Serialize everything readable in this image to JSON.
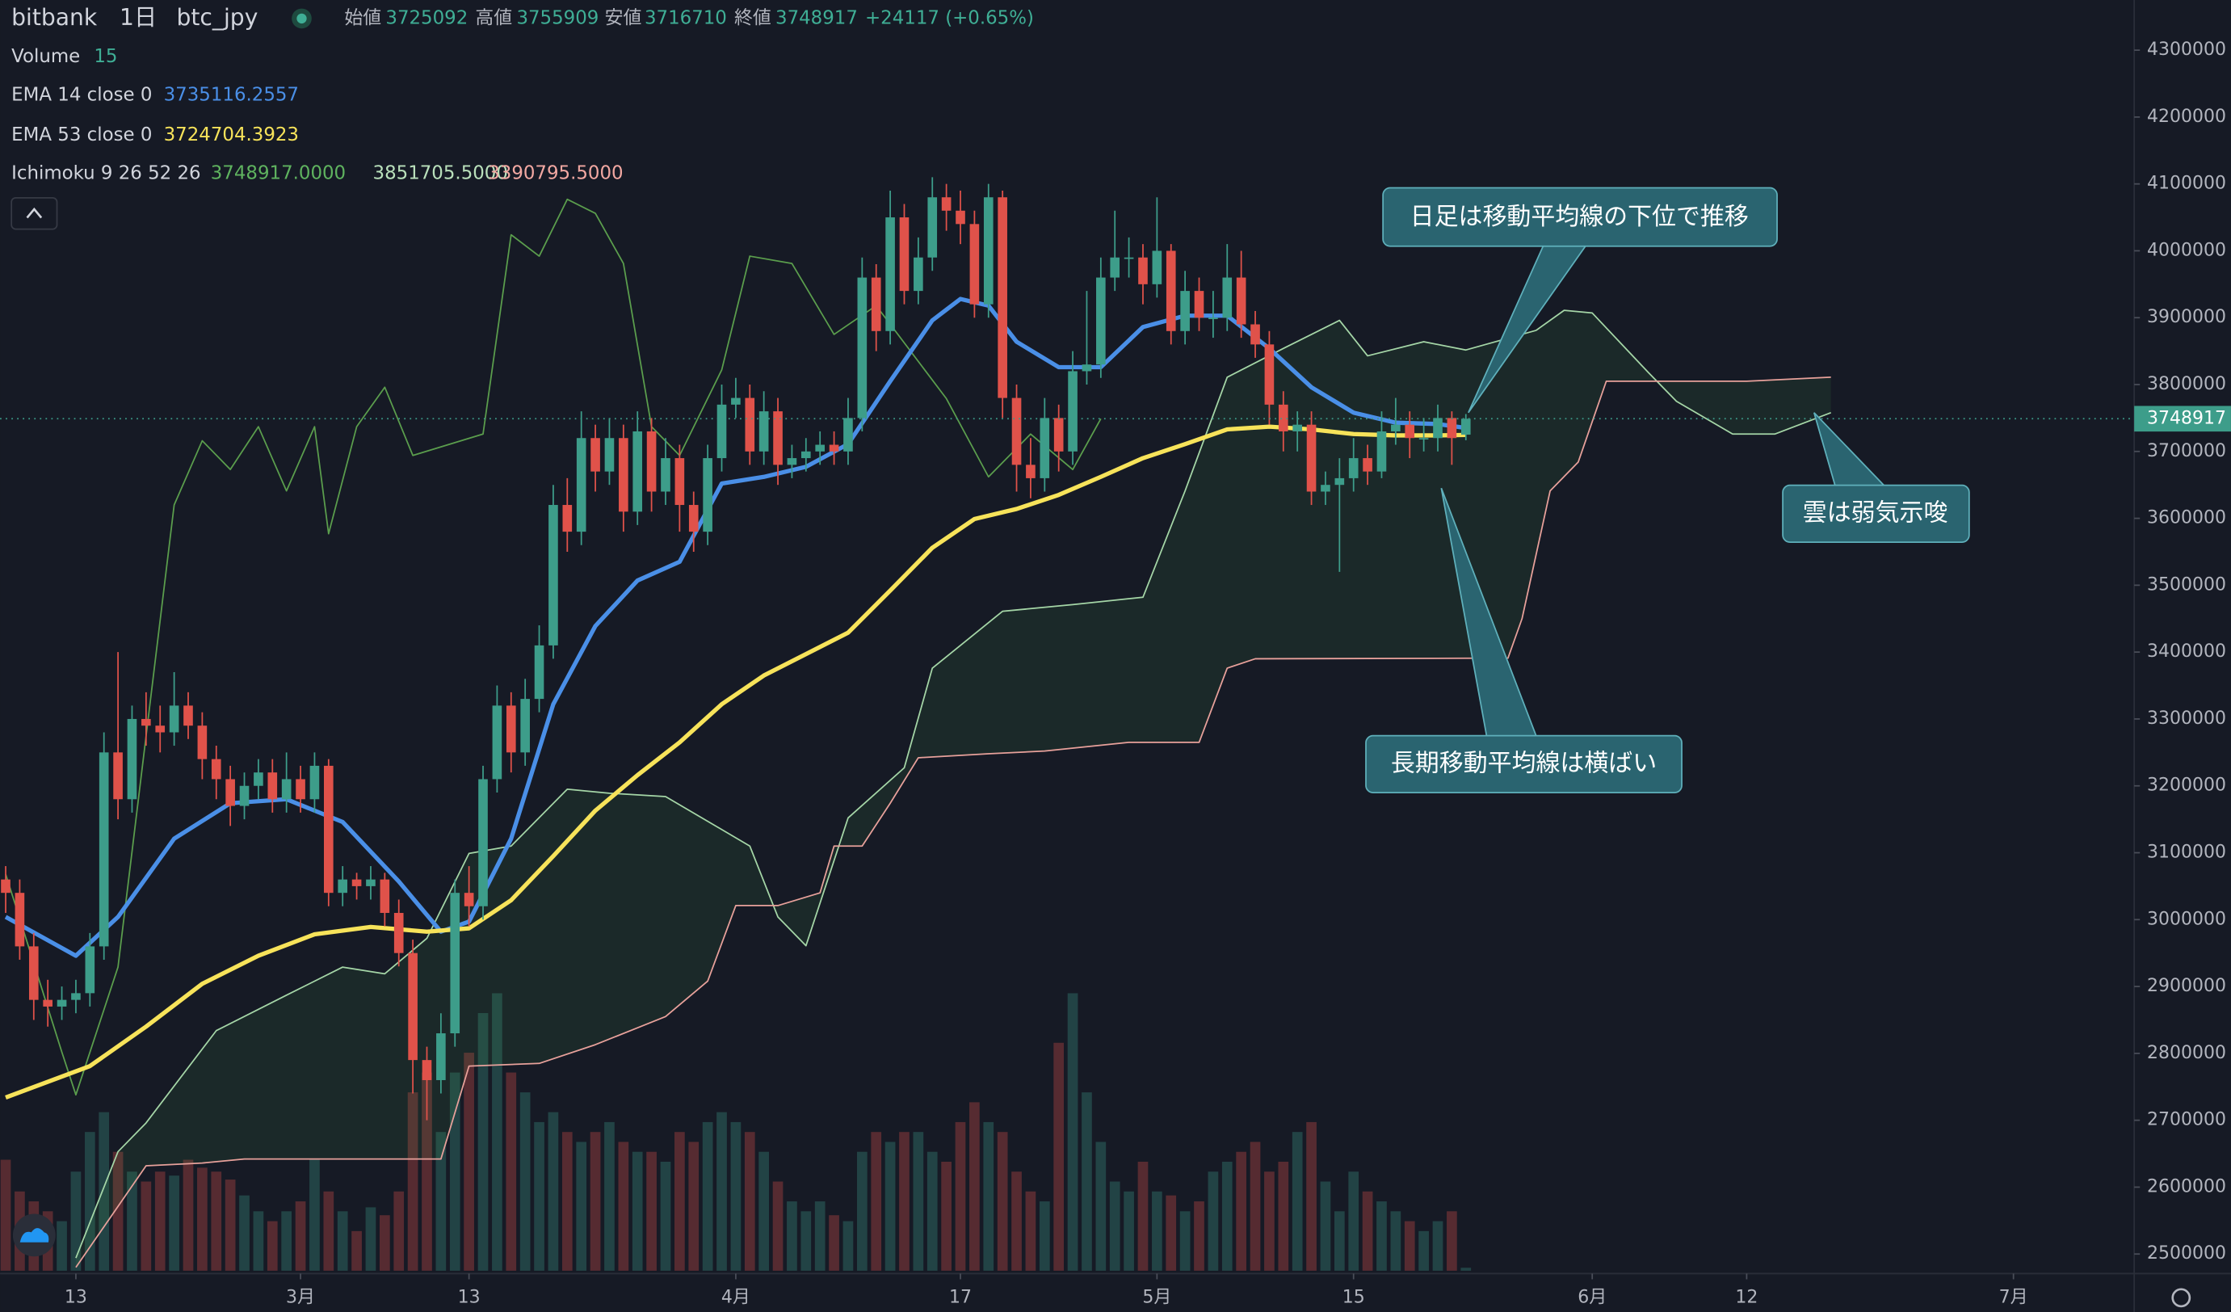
{
  "chart_data": {
    "type": "candlestick",
    "exchange": "bitbank",
    "interval": "1日",
    "symbol": "btc_jpy",
    "ohlc_labels": [
      "始値",
      "高値",
      "安値",
      "終値"
    ],
    "change": "+24117 (+0.65%)",
    "up_color": "#3d9d8a",
    "down_color": "#e0524a",
    "x": [
      39,
      40,
      41,
      42,
      43,
      44,
      45,
      46,
      47,
      48,
      49,
      50,
      51,
      52,
      53,
      54,
      55,
      56,
      57,
      58,
      59,
      60,
      61,
      62,
      63,
      64,
      65,
      66,
      67,
      68,
      69,
      70,
      71,
      72,
      73,
      74,
      75,
      76,
      77,
      78,
      79,
      80,
      81,
      82,
      83,
      84,
      85,
      86,
      87,
      88,
      89,
      90,
      91,
      92,
      93,
      94,
      95,
      96,
      97,
      98,
      99,
      100,
      101,
      102,
      103,
      104,
      105,
      106,
      107,
      108,
      109,
      110,
      111,
      112,
      113,
      114,
      115,
      116,
      117,
      118,
      119,
      120,
      121,
      122,
      123,
      124,
      125,
      126,
      127,
      128,
      129,
      130,
      131,
      132,
      133,
      134,
      135,
      136,
      137,
      138,
      139,
      140,
      141,
      142,
      143
    ],
    "open": [
      3060000,
      3040000,
      2960000,
      2880000,
      2870000,
      2880000,
      2890000,
      2960000,
      3250000,
      3180000,
      3300000,
      3290000,
      3280000,
      3320000,
      3290000,
      3240000,
      3210000,
      3170000,
      3200000,
      3220000,
      3180000,
      3210000,
      3180000,
      3230000,
      3040000,
      3060000,
      3050000,
      3060000,
      3010000,
      2950000,
      2790000,
      2760000,
      2830000,
      3040000,
      3020000,
      3210000,
      3320000,
      3250000,
      3330000,
      3410000,
      3620000,
      3580000,
      3720000,
      3670000,
      3720000,
      3610000,
      3730000,
      3640000,
      3690000,
      3620000,
      3580000,
      3690000,
      3770000,
      3780000,
      3700000,
      3760000,
      3680000,
      3690000,
      3700000,
      3710000,
      3700000,
      3750000,
      3960000,
      3880000,
      4050000,
      3940000,
      3990000,
      4080000,
      4060000,
      4040000,
      3920000,
      4080000,
      3780000,
      3680000,
      3660000,
      3750000,
      3700000,
      3820000,
      3830000,
      3960000,
      3990000,
      3990000,
      3950000,
      4000000,
      3880000,
      3940000,
      3900000,
      3900000,
      3960000,
      3890000,
      3860000,
      3770000,
      3730000,
      3740000,
      3640000,
      3650000,
      3660000,
      3690000,
      3670000,
      3730000,
      3740000,
      3720000,
      3720000,
      3750000,
      3725092
    ],
    "high": [
      3080000,
      3060000,
      2980000,
      2910000,
      2900000,
      2910000,
      2980000,
      3280000,
      3400000,
      3320000,
      3340000,
      3320000,
      3370000,
      3340000,
      3310000,
      3260000,
      3230000,
      3220000,
      3240000,
      3240000,
      3250000,
      3230000,
      3250000,
      3240000,
      3080000,
      3070000,
      3080000,
      3070000,
      3030000,
      2970000,
      2810000,
      2860000,
      3060000,
      3080000,
      3230000,
      3350000,
      3340000,
      3360000,
      3440000,
      3650000,
      3660000,
      3760000,
      3740000,
      3750000,
      3740000,
      3760000,
      3750000,
      3720000,
      3710000,
      3640000,
      3710000,
      3800000,
      3810000,
      3800000,
      3790000,
      3780000,
      3710000,
      3720000,
      3730000,
      3730000,
      3780000,
      3990000,
      3980000,
      4090000,
      4070000,
      4020000,
      4110000,
      4100000,
      4090000,
      4060000,
      4100000,
      4090000,
      3800000,
      3720000,
      3780000,
      3770000,
      3850000,
      3940000,
      3990000,
      4060000,
      4020000,
      4010000,
      4080000,
      4010000,
      3970000,
      3960000,
      3940000,
      4010000,
      4000000,
      3910000,
      3880000,
      3790000,
      3760000,
      3760000,
      3670000,
      3690000,
      3720000,
      3710000,
      3760000,
      3780000,
      3760000,
      3750000,
      3770000,
      3760000,
      3755909
    ],
    "low": [
      3010000,
      2940000,
      2850000,
      2840000,
      2850000,
      2860000,
      2870000,
      2940000,
      3150000,
      3160000,
      3260000,
      3250000,
      3260000,
      3270000,
      3210000,
      3180000,
      3140000,
      3150000,
      3180000,
      3160000,
      3160000,
      3160000,
      3160000,
      3020000,
      3020000,
      3030000,
      3030000,
      2990000,
      2930000,
      2740000,
      2700000,
      2740000,
      2810000,
      2990000,
      3000000,
      3190000,
      3220000,
      3230000,
      3310000,
      3390000,
      3550000,
      3560000,
      3640000,
      3650000,
      3580000,
      3590000,
      3610000,
      3620000,
      3580000,
      3550000,
      3560000,
      3670000,
      3750000,
      3680000,
      3680000,
      3650000,
      3660000,
      3670000,
      3680000,
      3680000,
      3680000,
      3730000,
      3850000,
      3860000,
      3920000,
      3920000,
      3970000,
      4030000,
      4010000,
      3900000,
      3900000,
      3750000,
      3640000,
      3630000,
      3640000,
      3670000,
      3680000,
      3800000,
      3810000,
      3940000,
      3960000,
      3920000,
      3930000,
      3860000,
      3860000,
      3880000,
      3870000,
      3880000,
      3870000,
      3840000,
      3740000,
      3700000,
      3700000,
      3620000,
      3620000,
      3520000,
      3640000,
      3650000,
      3660000,
      3710000,
      3690000,
      3700000,
      3700000,
      3680000,
      3716710
    ],
    "close": [
      3040000,
      2960000,
      2880000,
      2870000,
      2880000,
      2890000,
      2960000,
      3250000,
      3180000,
      3300000,
      3290000,
      3280000,
      3320000,
      3290000,
      3240000,
      3210000,
      3170000,
      3200000,
      3220000,
      3180000,
      3210000,
      3180000,
      3230000,
      3040000,
      3060000,
      3050000,
      3060000,
      3010000,
      2950000,
      2790000,
      2760000,
      2830000,
      3040000,
      3020000,
      3210000,
      3320000,
      3250000,
      3330000,
      3410000,
      3620000,
      3580000,
      3720000,
      3670000,
      3720000,
      3610000,
      3730000,
      3640000,
      3690000,
      3620000,
      3580000,
      3690000,
      3770000,
      3780000,
      3700000,
      3760000,
      3680000,
      3690000,
      3700000,
      3710000,
      3700000,
      3750000,
      3960000,
      3880000,
      4050000,
      3940000,
      3990000,
      4080000,
      4060000,
      4040000,
      3920000,
      4080000,
      3780000,
      3680000,
      3660000,
      3750000,
      3700000,
      3820000,
      3830000,
      3960000,
      3990000,
      3990000,
      3950000,
      4000000,
      3880000,
      3940000,
      3900000,
      3900000,
      3960000,
      3890000,
      3860000,
      3770000,
      3730000,
      3740000,
      3640000,
      3650000,
      3660000,
      3690000,
      3670000,
      3730000,
      3740000,
      3720000,
      3720000,
      3750000,
      3720000,
      3748917
    ],
    "volume": {
      "name": "Volume",
      "values": [
        560,
        400,
        350,
        300,
        250,
        500,
        700,
        800,
        600,
        500,
        450,
        500,
        480,
        560,
        520,
        500,
        460,
        380,
        300,
        250,
        300,
        350,
        560,
        400,
        300,
        200,
        320,
        280,
        400,
        900,
        1000,
        700,
        1000,
        1100,
        1300,
        1400,
        1000,
        900,
        750,
        800,
        700,
        650,
        700,
        750,
        650,
        600,
        600,
        550,
        700,
        650,
        750,
        800,
        750,
        700,
        600,
        450,
        350,
        300,
        350,
        280,
        250,
        600,
        700,
        650,
        700,
        700,
        600,
        550,
        750,
        850,
        750,
        700,
        500,
        400,
        350,
        1150,
        1400,
        900,
        650,
        450,
        400,
        550,
        400,
        380,
        300,
        350,
        500,
        550,
        600,
        650,
        500,
        550,
        700,
        750,
        450,
        300,
        500,
        400,
        350,
        300,
        250,
        200,
        250,
        300,
        15
      ]
    },
    "series": [
      {
        "name": "EMA 14 close 0",
        "color": "#4a8fe7",
        "x": [
          39,
          44,
          47,
          51,
          55,
          59,
          63,
          67,
          70,
          72,
          75,
          78,
          81,
          84,
          87,
          90,
          93,
          96,
          99,
          102,
          105,
          107,
          109,
          111,
          114,
          117,
          120,
          123,
          126,
          129,
          132,
          135,
          138,
          141,
          143
        ],
        "values": [
          3004000,
          2946000,
          3004000,
          3121000,
          3174000,
          3180000,
          3146000,
          3057000,
          2982000,
          2997000,
          3121000,
          3322000,
          3439000,
          3507000,
          3535000,
          3652000,
          3662000,
          3677000,
          3711000,
          3805000,
          3896000,
          3928000,
          3918000,
          3864000,
          3826000,
          3826000,
          3886000,
          3903000,
          3903000,
          3854000,
          3796000,
          3758000,
          3743000,
          3741000,
          3735116.2557
        ]
      },
      {
        "name": "EMA 53 close 0",
        "color": "#f7e35a",
        "x": [
          39,
          45,
          49,
          53,
          57,
          61,
          65,
          69,
          72,
          75,
          78,
          81,
          84,
          87,
          90,
          93,
          96,
          99,
          102,
          105,
          108,
          111,
          114,
          117,
          120,
          123,
          126,
          129,
          132,
          135,
          138,
          141,
          143
        ],
        "values": [
          2734000,
          2781000,
          2840000,
          2904000,
          2946000,
          2978000,
          2989000,
          2982000,
          2987000,
          3029000,
          3095000,
          3163000,
          3216000,
          3265000,
          3322000,
          3365000,
          3397000,
          3429000,
          3492000,
          3556000,
          3599000,
          3614000,
          3635000,
          3662000,
          3690000,
          3711000,
          3733000,
          3737000,
          3733000,
          3726000,
          3724000,
          3724000,
          3724704.3923
        ]
      }
    ],
    "ichimoku": {
      "name": "Ichimoku 9 26 52 26",
      "cloud_color": "#4caf50",
      "value_labels": [
        "3748917.0000",
        "3851705.5000",
        "3390795.5000"
      ],
      "lines": [
        {
          "color": "#5b9e4d",
          "x": [
            39,
            43,
            44,
            47,
            51,
            53,
            55,
            57,
            59,
            61,
            62,
            64,
            66,
            68,
            73,
            75,
            77,
            79,
            81,
            83,
            85,
            87,
            90,
            92,
            95,
            98,
            101,
            106,
            109,
            112,
            115,
            117
          ],
          "values": [
            3068000,
            2802000,
            2738000,
            2929000,
            3620000,
            3716000,
            3673000,
            3737000,
            3641000,
            3737000,
            3577000,
            3737000,
            3796000,
            3694000,
            3726000,
            4024000,
            3992000,
            4077000,
            4056000,
            3981000,
            3737000,
            3694000,
            3822000,
            3992000,
            3981000,
            3875000,
            3918000,
            3779000,
            3662000,
            3726000,
            3673000,
            3748917
          ]
        },
        {
          "color": "#a5d6a7",
          "x": [
            44,
            47,
            49,
            54,
            59,
            63,
            66,
            69,
            72,
            75,
            79,
            82,
            86,
            92,
            94,
            96,
            99,
            103,
            105,
            110,
            115,
            120,
            123,
            126,
            130,
            134,
            136,
            140,
            143,
            148,
            150,
            152,
            156,
            158,
            162,
            165,
            169
          ],
          "values": [
            2494000,
            2653000,
            2696000,
            2834000,
            2887000,
            2929000,
            2919000,
            2972000,
            3099000,
            3110000,
            3195000,
            3189000,
            3184000,
            3110000,
            3004000,
            2961000,
            3152000,
            3227000,
            3376000,
            3461000,
            3471000,
            3482000,
            3641000,
            3811000,
            3854000,
            3896000,
            3843000,
            3864000,
            3851705.5,
            3881000,
            3911000,
            3907000,
            3818000,
            3775000,
            3726000,
            3726000,
            3758000
          ]
        },
        {
          "color": "#e8a19b",
          "x": [
            44,
            49,
            53,
            56,
            70,
            72,
            77,
            81,
            86,
            89,
            91,
            94,
            97,
            98,
            100,
            102,
            104,
            109,
            113,
            119,
            124,
            126,
            128,
            143,
            146,
            147,
            149,
            151,
            153,
            163,
            169
          ],
          "values": [
            2480000,
            2632000,
            2636000,
            2642000,
            2642000,
            2781000,
            2785000,
            2813000,
            2855000,
            2908000,
            3021000,
            3021000,
            3040000,
            3110000,
            3110000,
            3174000,
            3242000,
            3248000,
            3252000,
            3265000,
            3265000,
            3376000,
            3390000,
            3390795.5,
            3391000,
            3450000,
            3641000,
            3684000,
            3805000,
            3805000,
            3811000
          ]
        }
      ]
    },
    "xlim": [
      38.6,
      190.6
    ],
    "xticks": [
      {
        "value": 44,
        "label": "13"
      },
      {
        "value": 60,
        "label": "3月"
      },
      {
        "value": 72,
        "label": "13"
      },
      {
        "value": 91,
        "label": "4月"
      },
      {
        "value": 107,
        "label": "17"
      },
      {
        "value": 121,
        "label": "5月"
      },
      {
        "value": 135,
        "label": "15"
      },
      {
        "value": 152,
        "label": "6月"
      },
      {
        "value": 163,
        "label": "12"
      },
      {
        "value": 182,
        "label": "7月"
      }
    ],
    "ylim": [
      2475000,
      4375000
    ],
    "yticks": [
      2500000,
      2600000,
      2700000,
      2800000,
      2900000,
      3000000,
      3100000,
      3200000,
      3300000,
      3400000,
      3500000,
      3600000,
      3700000,
      3800000,
      3900000,
      4000000,
      4100000,
      4200000,
      4300000
    ],
    "annotations": [
      "日足は移動平均線の下位で推移",
      "長期移動平均線は横ばい",
      "雲は弱気示唆"
    ]
  }
}
